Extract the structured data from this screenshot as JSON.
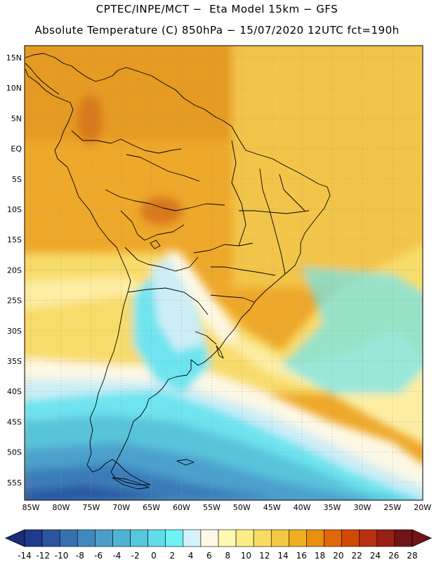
{
  "title_line1": "CPTEC/INPE/MCT −  Eta Model 15km − GFS",
  "title_line2": "Absolute Temperature (C) 850hPa − 15/07/2020 12UTC fct=190h",
  "lat_labels": [
    "15N",
    "10N",
    "5N",
    "EQ",
    "5S",
    "10S",
    "15S",
    "20S",
    "25S",
    "30S",
    "35S",
    "40S",
    "45S",
    "50S",
    "55S"
  ],
  "lon_labels": [
    "85W",
    "80W",
    "75W",
    "70W",
    "65W",
    "60W",
    "55W",
    "50W",
    "45W",
    "40W",
    "35W",
    "30W",
    "25W",
    "20W"
  ],
  "colorbar": {
    "labels": [
      "-14",
      "-12",
      "-10",
      "-8",
      "-6",
      "-4",
      "-2",
      "0",
      "2",
      "4",
      "6",
      "8",
      "10",
      "12",
      "14",
      "16",
      "18",
      "20",
      "22",
      "24",
      "26",
      "28"
    ],
    "colors": [
      "#1f3a8a",
      "#2a56a0",
      "#3670b0",
      "#4288c0",
      "#4c9cc8",
      "#4fb4d4",
      "#55c8de",
      "#60dcea",
      "#6ef2f4",
      "#d4f2fa",
      "#fdf8e8",
      "#fff8b0",
      "#fcec88",
      "#f8dc62",
      "#f2c844",
      "#eeb020",
      "#e88e10",
      "#e06808",
      "#d04a04",
      "#b83010",
      "#982014",
      "#701418"
    ],
    "arrow_low": "#1a2e78",
    "arrow_high": "#701418"
  },
  "map_colors": {
    "warm_orange": "#eea82a",
    "warm_deep": "#e59a24",
    "hot": "#d8781c",
    "yellow_orange": "#f2c448",
    "yellow": "#f8dc6a",
    "pale_yellow": "#fdeea4",
    "cream": "#fdf8e4",
    "pale_cyan": "#cdeef6",
    "cyan": "#6ee4f0",
    "light_blue": "#58c4dc",
    "mid_blue": "#4ba0cc",
    "dark_blue": "#3a7cb8",
    "deep_blue": "#2a58a2"
  },
  "legend_icons": [
    "arrow-left-icon",
    "arrow-right-icon"
  ]
}
